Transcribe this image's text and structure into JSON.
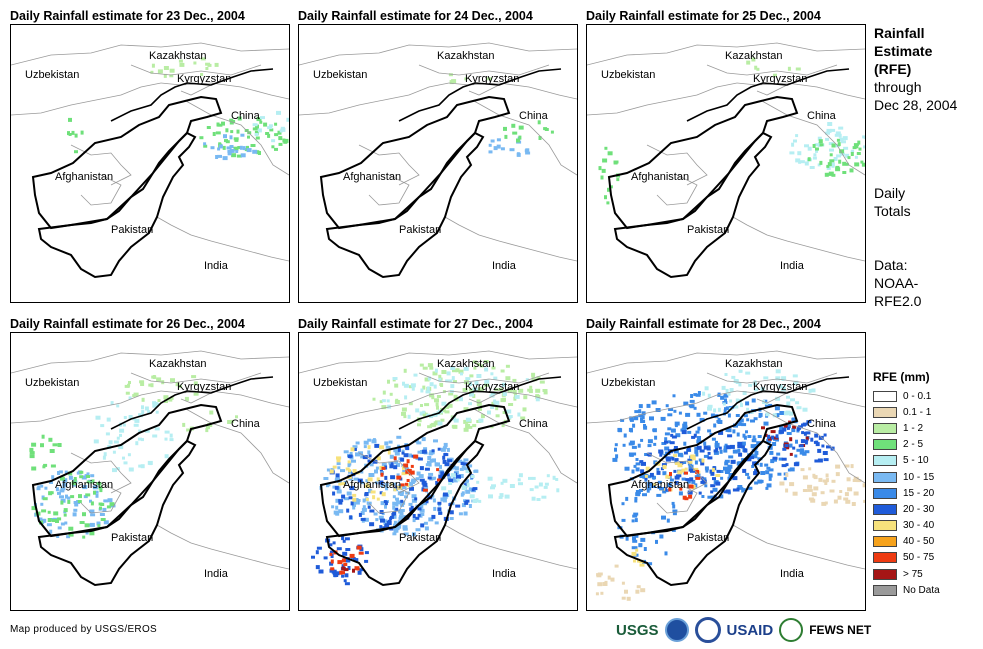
{
  "panels": [
    {
      "title": "Daily Rainfall estimate for 23 Dec., 2004",
      "intensity": "light"
    },
    {
      "title": "Daily Rainfall estimate for 24 Dec., 2004",
      "intensity": "very-light"
    },
    {
      "title": "Daily Rainfall estimate for 25 Dec., 2004",
      "intensity": "light"
    },
    {
      "title": "Daily Rainfall estimate for 26 Dec., 2004",
      "intensity": "moderate"
    },
    {
      "title": "Daily Rainfall estimate for 27 Dec., 2004",
      "intensity": "heavy-southwest"
    },
    {
      "title": "Daily Rainfall estimate for 28 Dec., 2004",
      "intensity": "heavy-east"
    }
  ],
  "country_labels": {
    "kazakhstan": "Kazakhstan",
    "kyrgyzstan": "Kyrgyzstan",
    "uzbekistan": "Uzbekistan",
    "china": "China",
    "afghanistan": "Afghanistan",
    "pakistan": "Pakistan",
    "india": "India"
  },
  "side": {
    "title_lines": [
      "Rainfall",
      "Estimate",
      "(RFE)"
    ],
    "through_lines": [
      "through",
      "Dec 28, 2004"
    ],
    "totals_lines": [
      "Daily",
      "Totals"
    ],
    "data_lines": [
      "Data:",
      "NOAA-",
      "RFE2.0"
    ]
  },
  "legend": {
    "title": "RFE (mm)",
    "items": [
      {
        "label": "0 - 0.1",
        "color": "#ffffff"
      },
      {
        "label": "0.1 - 1",
        "color": "#ead7b4"
      },
      {
        "label": "1 - 2",
        "color": "#b9eda4"
      },
      {
        "label": "2 - 5",
        "color": "#6fe07a"
      },
      {
        "label": "5 - 10",
        "color": "#b6eef2"
      },
      {
        "label": "10 - 15",
        "color": "#79b9f2"
      },
      {
        "label": "15 - 20",
        "color": "#3a8ae8"
      },
      {
        "label": "20 - 30",
        "color": "#1f5bd9"
      },
      {
        "label": "30 - 40",
        "color": "#f7e27c"
      },
      {
        "label": "40 - 50",
        "color": "#f6a21c"
      },
      {
        "label": "50 - 75",
        "color": "#ee3b12"
      },
      {
        "label": "> 75",
        "color": "#a51515"
      },
      {
        "label": "No Data",
        "color": "#9a9a9a"
      }
    ]
  },
  "footer": {
    "credit": "Map produced by USGS/EROS",
    "logos": [
      "USGS",
      "NOAA",
      "USAID",
      "FEWS NET"
    ]
  }
}
